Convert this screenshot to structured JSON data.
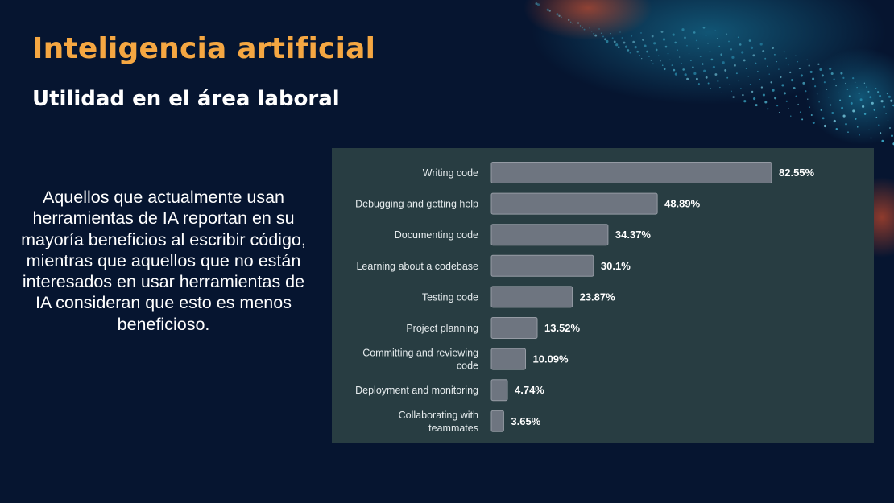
{
  "slide": {
    "title": "Inteligencia artificial",
    "subtitle": "Utilidad en el área laboral",
    "paragraph": "Aquellos que actualmente usan herramientas de IA reportan en su mayoría beneficios al escribir código, mientras que aquellos que no están interesados en usar herramientas de IA consideran que esto es menos beneficioso."
  },
  "colors": {
    "background": "#061530",
    "title": "#f5a742",
    "panel": "#283d42",
    "bar": "#6e7580"
  },
  "chart_data": {
    "type": "bar",
    "orientation": "horizontal",
    "categories": [
      "Writing code",
      "Debugging and getting help",
      "Documenting code",
      "Learning about a codebase",
      "Testing code",
      "Project planning",
      "Committing and reviewing code",
      "Deployment and monitoring",
      "Collaborating with teammates"
    ],
    "values": [
      82.55,
      48.89,
      34.37,
      30.1,
      23.87,
      13.52,
      10.09,
      4.74,
      3.65
    ],
    "value_labels": [
      "82.55%",
      "48.89%",
      "34.37%",
      "30.1%",
      "23.87%",
      "13.52%",
      "10.09%",
      "4.74%",
      "3.65%"
    ],
    "xlim": [
      0,
      100
    ],
    "grid": false,
    "legend": "none"
  }
}
